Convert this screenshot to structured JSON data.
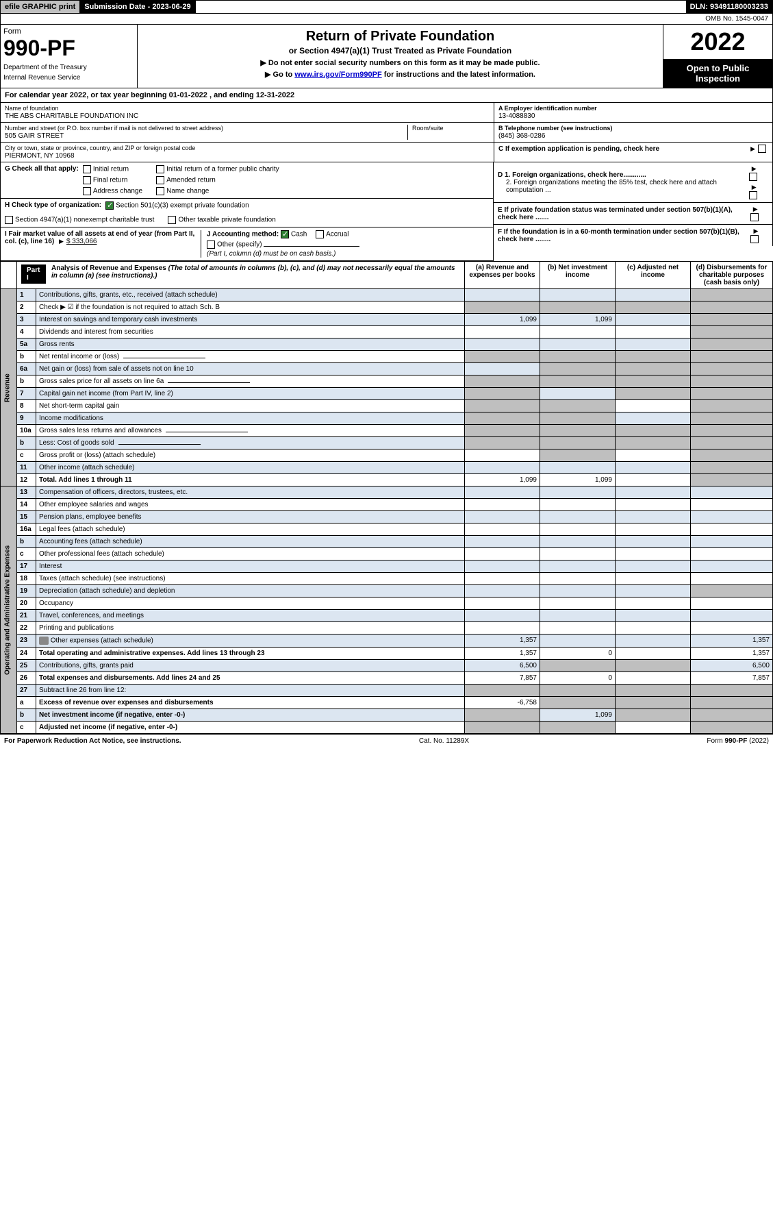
{
  "top": {
    "efile": "efile GRAPHIC print",
    "sub_date_label": "Submission Date - 2023-06-29",
    "dln": "DLN: 93491180003233"
  },
  "omb": "OMB No. 1545-0047",
  "header": {
    "form_word": "Form",
    "form_num": "990-PF",
    "dept": "Department of the Treasury",
    "irs": "Internal Revenue Service",
    "title": "Return of Private Foundation",
    "sub1": "or Section 4947(a)(1) Trust Treated as Private Foundation",
    "sub2a": "▶ Do not enter social security numbers on this form as it may be made public.",
    "sub2b": "▶ Go to ",
    "sub2b_link": "www.irs.gov/Form990PF",
    "sub2b_tail": " for instructions and the latest information.",
    "year": "2022",
    "open": "Open to Public Inspection"
  },
  "cal_year": "For calendar year 2022, or tax year beginning 01-01-2022                         , and ending 12-31-2022",
  "info": {
    "name_lbl": "Name of foundation",
    "name": "THE ABS CHARITABLE FOUNDATION INC",
    "addr_lbl": "Number and street (or P.O. box number if mail is not delivered to street address)",
    "addr": "505 GAIR STREET",
    "room_lbl": "Room/suite",
    "city_lbl": "City or town, state or province, country, and ZIP or foreign postal code",
    "city": "PIERMONT, NY  10968",
    "a_lbl": "A Employer identification number",
    "a_val": "13-4088830",
    "b_lbl": "B Telephone number (see instructions)",
    "b_val": "(845) 368-0286",
    "c_lbl": "C If exemption application is pending, check here"
  },
  "g": {
    "label": "G Check all that apply:",
    "opts": [
      "Initial return",
      "Final return",
      "Address change",
      "Initial return of a former public charity",
      "Amended return",
      "Name change"
    ]
  },
  "d": {
    "d1": "D 1. Foreign organizations, check here............",
    "d2": "2. Foreign organizations meeting the 85% test, check here and attach computation ..."
  },
  "h": {
    "label": "H Check type of organization:",
    "opt1": "Section 501(c)(3) exempt private foundation",
    "opt2": "Section 4947(a)(1) nonexempt charitable trust",
    "opt3": "Other taxable private foundation"
  },
  "e": "E  If private foundation status was terminated under section 507(b)(1)(A), check here .......",
  "i": {
    "label": "I Fair market value of all assets at end of year (from Part II, col. (c), line 16)",
    "val": "$  333,066"
  },
  "j": {
    "label": "J Accounting method:",
    "cash": "Cash",
    "accrual": "Accrual",
    "other": "Other (specify)",
    "note": "(Part I, column (d) must be on cash basis.)"
  },
  "f": "F  If the foundation is in a 60-month termination under section 507(b)(1)(B), check here ........",
  "part1": {
    "label": "Part I",
    "title": "Analysis of Revenue and Expenses",
    "note": "(The total of amounts in columns (b), (c), and (d) may not necessarily equal the amounts in column (a) (see instructions).)",
    "cols": {
      "a": "(a)   Revenue and expenses per books",
      "b": "(b)   Net investment income",
      "c": "(c)   Adjusted net income",
      "d": "(d)   Disbursements for charitable purposes (cash basis only)"
    }
  },
  "sections": {
    "revenue": "Revenue",
    "opex": "Operating and Administrative Expenses"
  },
  "rows": [
    {
      "n": "1",
      "d": "Contributions, gifts, grants, etc., received (attach schedule)",
      "a": "",
      "b": "",
      "c": "",
      "dd": "",
      "shade_d": true
    },
    {
      "n": "2",
      "d": "Check ▶ ☑ if the foundation is not required to attach Sch. B",
      "a": "",
      "b": "",
      "c": "",
      "dd": "",
      "shade_all": true,
      "no_a": true
    },
    {
      "n": "3",
      "d": "Interest on savings and temporary cash investments",
      "a": "1,099",
      "b": "1,099",
      "c": "",
      "dd": "",
      "shade_d": true
    },
    {
      "n": "4",
      "d": "Dividends and interest from securities",
      "a": "",
      "b": "",
      "c": "",
      "dd": "",
      "shade_d": true
    },
    {
      "n": "5a",
      "d": "Gross rents",
      "a": "",
      "b": "",
      "c": "",
      "dd": "",
      "shade_d": true
    },
    {
      "n": "b",
      "d": "Net rental income or (loss)",
      "a": "",
      "b": "",
      "c": "",
      "dd": "",
      "shade_all": true,
      "inline": true
    },
    {
      "n": "6a",
      "d": "Net gain or (loss) from sale of assets not on line 10",
      "a": "",
      "b": "",
      "c": "",
      "dd": "",
      "shade_bcd": true
    },
    {
      "n": "b",
      "d": "Gross sales price for all assets on line 6a",
      "a": "",
      "b": "",
      "c": "",
      "dd": "",
      "shade_all": true,
      "inline": true
    },
    {
      "n": "7",
      "d": "Capital gain net income (from Part IV, line 2)",
      "a": "",
      "b": "",
      "c": "",
      "dd": "",
      "shade_a": true,
      "shade_cd": true
    },
    {
      "n": "8",
      "d": "Net short-term capital gain",
      "a": "",
      "b": "",
      "c": "",
      "dd": "",
      "shade_ab": true,
      "shade_d": true
    },
    {
      "n": "9",
      "d": "Income modifications",
      "a": "",
      "b": "",
      "c": "",
      "dd": "",
      "shade_ab": true,
      "shade_d": true
    },
    {
      "n": "10a",
      "d": "Gross sales less returns and allowances",
      "a": "",
      "b": "",
      "c": "",
      "dd": "",
      "shade_all": true,
      "inline": true
    },
    {
      "n": "b",
      "d": "Less: Cost of goods sold",
      "a": "",
      "b": "",
      "c": "",
      "dd": "",
      "shade_all": true,
      "inline": true
    },
    {
      "n": "c",
      "d": "Gross profit or (loss) (attach schedule)",
      "a": "",
      "b": "",
      "c": "",
      "dd": "",
      "shade_b": true,
      "shade_d": true
    },
    {
      "n": "11",
      "d": "Other income (attach schedule)",
      "a": "",
      "b": "",
      "c": "",
      "dd": "",
      "shade_d": true
    },
    {
      "n": "12",
      "d": "Total. Add lines 1 through 11",
      "a": "1,099",
      "b": "1,099",
      "c": "",
      "dd": "",
      "bold": true,
      "shade_d": true
    },
    {
      "n": "13",
      "d": "Compensation of officers, directors, trustees, etc.",
      "a": "",
      "b": "",
      "c": "",
      "dd": ""
    },
    {
      "n": "14",
      "d": "Other employee salaries and wages",
      "a": "",
      "b": "",
      "c": "",
      "dd": ""
    },
    {
      "n": "15",
      "d": "Pension plans, employee benefits",
      "a": "",
      "b": "",
      "c": "",
      "dd": ""
    },
    {
      "n": "16a",
      "d": "Legal fees (attach schedule)",
      "a": "",
      "b": "",
      "c": "",
      "dd": ""
    },
    {
      "n": "b",
      "d": "Accounting fees (attach schedule)",
      "a": "",
      "b": "",
      "c": "",
      "dd": ""
    },
    {
      "n": "c",
      "d": "Other professional fees (attach schedule)",
      "a": "",
      "b": "",
      "c": "",
      "dd": ""
    },
    {
      "n": "17",
      "d": "Interest",
      "a": "",
      "b": "",
      "c": "",
      "dd": ""
    },
    {
      "n": "18",
      "d": "Taxes (attach schedule) (see instructions)",
      "a": "",
      "b": "",
      "c": "",
      "dd": ""
    },
    {
      "n": "19",
      "d": "Depreciation (attach schedule) and depletion",
      "a": "",
      "b": "",
      "c": "",
      "dd": "",
      "shade_d": true
    },
    {
      "n": "20",
      "d": "Occupancy",
      "a": "",
      "b": "",
      "c": "",
      "dd": ""
    },
    {
      "n": "21",
      "d": "Travel, conferences, and meetings",
      "a": "",
      "b": "",
      "c": "",
      "dd": ""
    },
    {
      "n": "22",
      "d": "Printing and publications",
      "a": "",
      "b": "",
      "c": "",
      "dd": ""
    },
    {
      "n": "23",
      "d": "Other expenses (attach schedule)",
      "a": "1,357",
      "b": "",
      "c": "",
      "dd": "1,357",
      "attach": true
    },
    {
      "n": "24",
      "d": "Total operating and administrative expenses. Add lines 13 through 23",
      "a": "1,357",
      "b": "0",
      "c": "",
      "dd": "1,357",
      "bold": true
    },
    {
      "n": "25",
      "d": "Contributions, gifts, grants paid",
      "a": "6,500",
      "b": "",
      "c": "",
      "dd": "6,500",
      "shade_bc": true
    },
    {
      "n": "26",
      "d": "Total expenses and disbursements. Add lines 24 and 25",
      "a": "7,857",
      "b": "0",
      "c": "",
      "dd": "7,857",
      "bold": true
    },
    {
      "n": "27",
      "d": "Subtract line 26 from line 12:",
      "a": "",
      "b": "",
      "c": "",
      "dd": "",
      "shade_all": true
    },
    {
      "n": "a",
      "d": "Excess of revenue over expenses and disbursements",
      "a": "-6,758",
      "b": "",
      "c": "",
      "dd": "",
      "bold": true,
      "shade_bcd": true
    },
    {
      "n": "b",
      "d": "Net investment income (if negative, enter -0-)",
      "a": "",
      "b": "1,099",
      "c": "",
      "dd": "",
      "bold": true,
      "shade_a": true,
      "shade_cd": true
    },
    {
      "n": "c",
      "d": "Adjusted net income (if negative, enter -0-)",
      "a": "",
      "b": "",
      "c": "",
      "dd": "",
      "bold": true,
      "shade_ab": true,
      "shade_d": true
    }
  ],
  "footer": {
    "left": "For Paperwork Reduction Act Notice, see instructions.",
    "mid": "Cat. No. 11289X",
    "right": "Form 990-PF (2022)"
  }
}
